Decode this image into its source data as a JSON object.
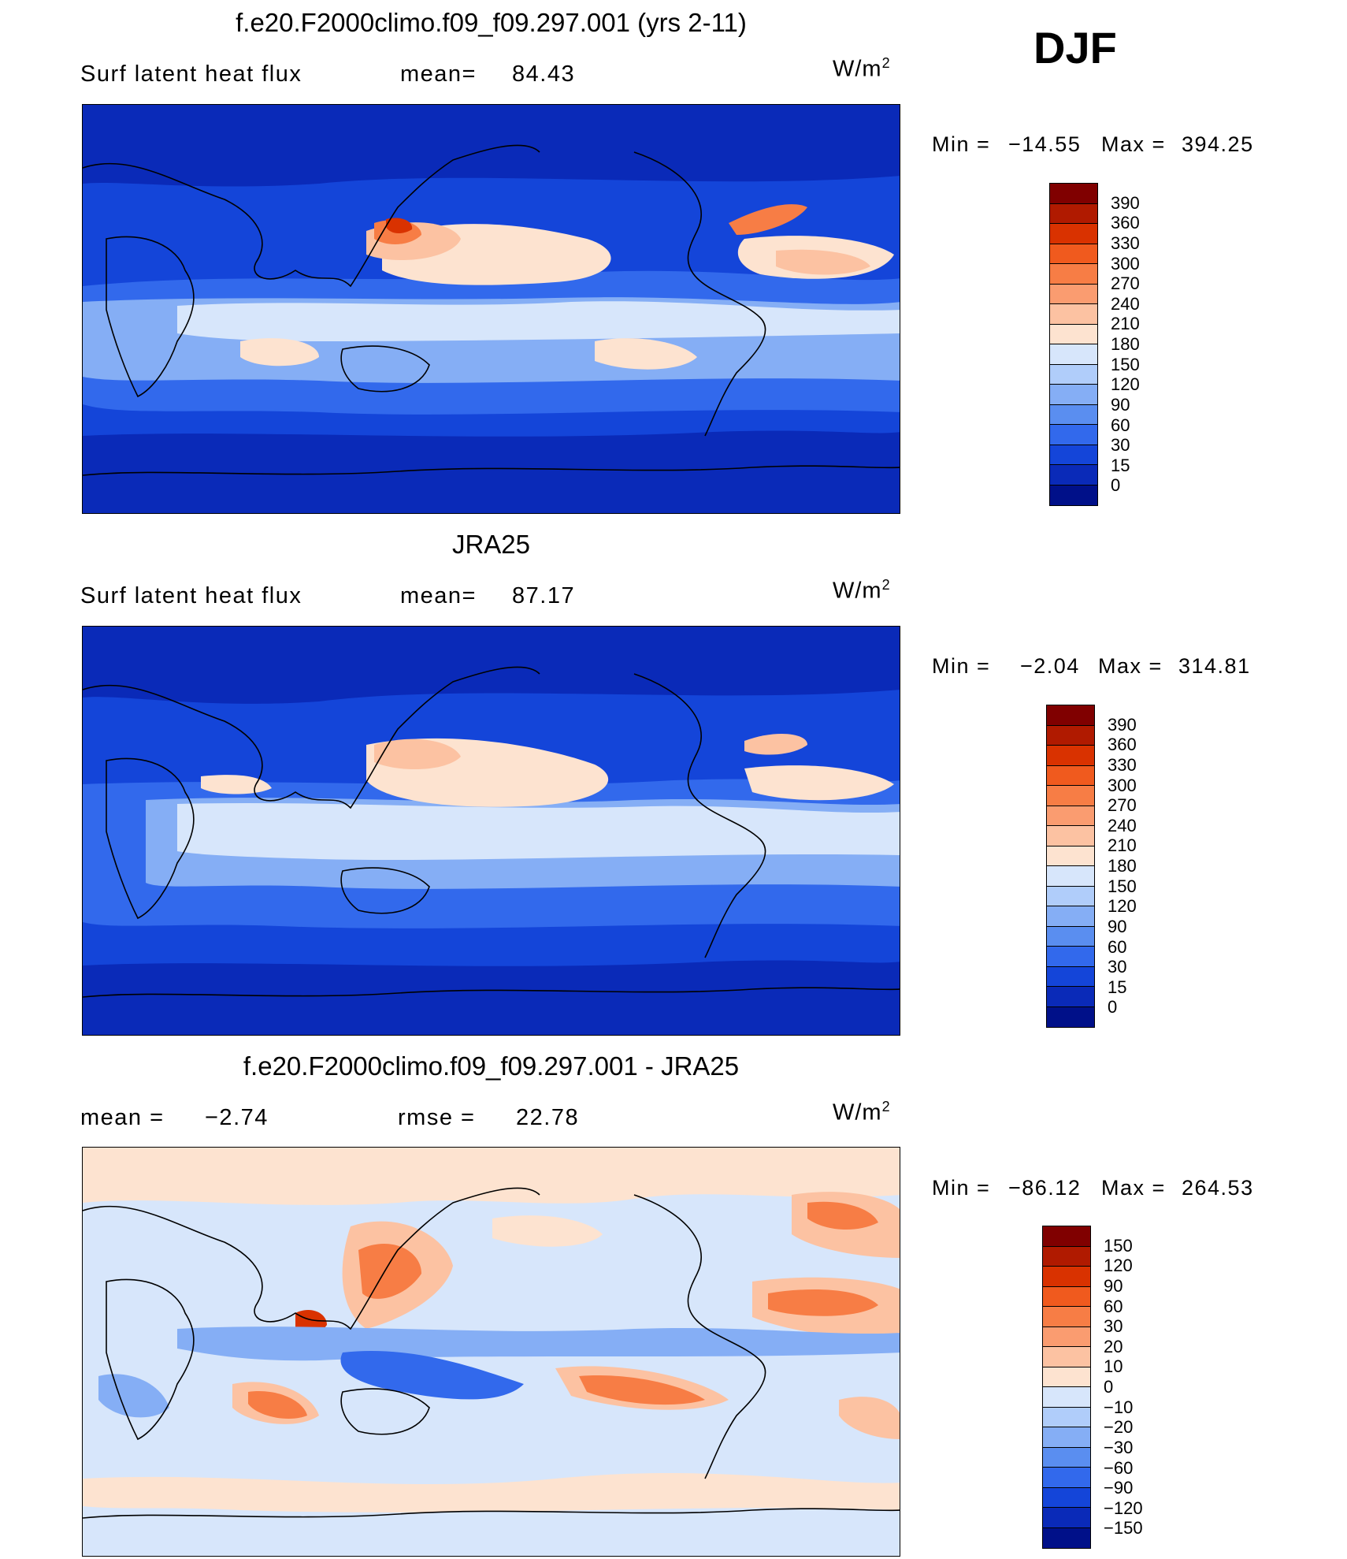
{
  "season": "DJF",
  "unit": "W/m",
  "unit_sup": "2",
  "panels": [
    {
      "title": "f.e20.F2000climo.f09_f09.297.001 (yrs 2-11)",
      "left_label": "Surf  latent  heat  flux",
      "stat_label": "mean=",
      "stat_value": "84.43",
      "min_label": "Min  =",
      "min_value": "−14.55",
      "max_label": "Max  =",
      "max_value": "394.25",
      "colorbar": {
        "levels": [
          "390",
          "360",
          "330",
          "300",
          "270",
          "240",
          "210",
          "180",
          "150",
          "120",
          "90",
          "60",
          "30",
          "15",
          "0"
        ],
        "colors": [
          "#800000",
          "#b01a00",
          "#d93200",
          "#f05a1e",
          "#f77d45",
          "#fa9c70",
          "#fcc2a2",
          "#fde3d0",
          "#d7e6fb",
          "#b0cdfa",
          "#85aef5",
          "#5a8ef0",
          "#3269ec",
          "#1445d9",
          "#0a2ab8",
          "#001089"
        ]
      }
    },
    {
      "title": "JRA25",
      "left_label": "Surf  latent  heat  flux",
      "stat_label": "mean=",
      "stat_value": "87.17",
      "min_label": "Min  =",
      "min_value": "−2.04",
      "max_label": "Max  =",
      "max_value": "314.81",
      "colorbar": {
        "levels": [
          "390",
          "360",
          "330",
          "300",
          "270",
          "240",
          "210",
          "180",
          "150",
          "120",
          "90",
          "60",
          "30",
          "15",
          "0"
        ],
        "colors": [
          "#800000",
          "#b01a00",
          "#d93200",
          "#f05a1e",
          "#f77d45",
          "#fa9c70",
          "#fcc2a2",
          "#fde3d0",
          "#d7e6fb",
          "#b0cdfa",
          "#85aef5",
          "#5a8ef0",
          "#3269ec",
          "#1445d9",
          "#0a2ab8",
          "#001089"
        ]
      }
    },
    {
      "title": "f.e20.F2000climo.f09_f09.297.001 - JRA25",
      "left_label": "mean  =",
      "left_value": "−2.74",
      "stat_label": "rmse  =",
      "stat_value": "22.78",
      "min_label": "Min  =",
      "min_value": "−86.12",
      "max_label": "Max  =",
      "max_value": "264.53",
      "colorbar": {
        "levels": [
          "150",
          "120",
          "90",
          "60",
          "30",
          "20",
          "10",
          "0",
          "−10",
          "−20",
          "−30",
          "−60",
          "−90",
          "−120",
          "−150"
        ],
        "colors": [
          "#800000",
          "#b01a00",
          "#d93200",
          "#f05a1e",
          "#f77d45",
          "#fa9c70",
          "#fcc2a2",
          "#fde3d0",
          "#d7e6fb",
          "#b0cdfa",
          "#85aef5",
          "#5a8ef0",
          "#3269ec",
          "#1445d9",
          "#0a2ab8",
          "#001089"
        ]
      }
    }
  ],
  "map_colors": {
    "deep": "#0a2ab8",
    "mid": "#1445d9",
    "blue": "#3269ec",
    "light_blue": "#85aef5",
    "pale_blue": "#d7e6fb",
    "peach": "#fde3d0",
    "salmon": "#fcc2a2",
    "orange": "#f77d45",
    "red": "#d93200",
    "coast": "#000000"
  }
}
